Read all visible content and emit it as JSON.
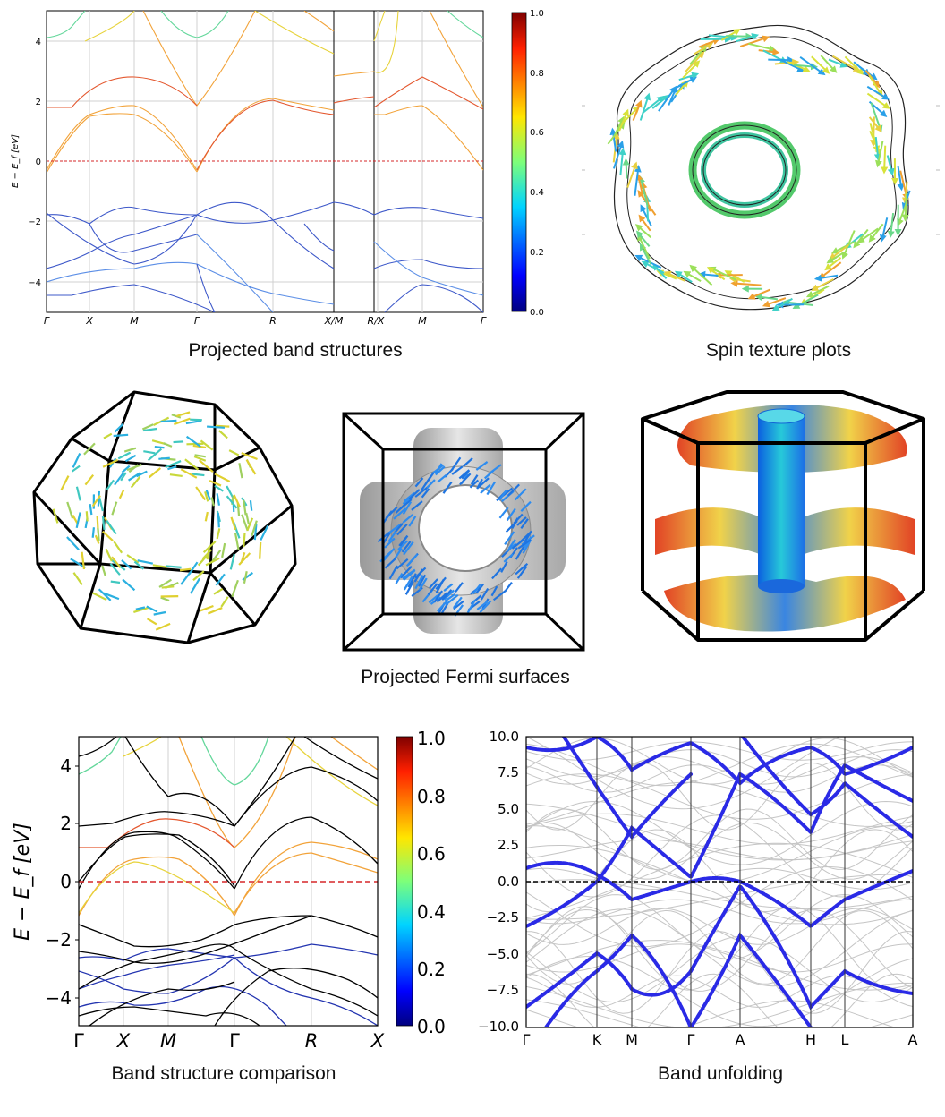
{
  "colors": {
    "band_red": "#e4572e",
    "band_orange": "#f2a33a",
    "band_yellow": "#e7d33c",
    "band_green": "#64d79b",
    "band_blue": "#3d58c9",
    "band_lightblue": "#5b8ee6",
    "fermi_dash": "#d62728",
    "unfold_blue": "#2a2ae6",
    "unfold_grey": "#c5c5c5"
  },
  "captions": {
    "projected_bands": "Projected band structures",
    "spin_texture": "Spin texture plots",
    "fermi_surfaces": "Projected Fermi surfaces",
    "band_comparison": "Band structure comparison",
    "band_unfolding": "Band unfolding"
  },
  "panel1": {
    "ylabel": "E − E_f [eV]",
    "yticks": [
      "4",
      "2",
      "0",
      "−2",
      "−4"
    ],
    "xticks": [
      "Γ",
      "X",
      "M",
      "Γ",
      "R",
      "X/M",
      "R/X",
      "M",
      "Γ"
    ],
    "colorbar_ticks": [
      "1.0",
      "0.8",
      "0.6",
      "0.4",
      "0.2",
      "0.0"
    ]
  },
  "panel_comparison": {
    "ylabel": "E − E_f [eV]",
    "yticks": [
      "4",
      "2",
      "0",
      "−2",
      "−4"
    ],
    "xticks": [
      "Γ",
      "X",
      "M",
      "Γ",
      "R",
      "X"
    ],
    "colorbar_ticks": [
      "1.0",
      "0.8",
      "0.6",
      "0.4",
      "0.2",
      "0.0"
    ]
  },
  "panel_unfolding": {
    "yticks": [
      "10.0",
      "7.5",
      "5.0",
      "2.5",
      "0.0",
      "−2.5",
      "−5.0",
      "−7.5",
      "−10.0"
    ],
    "xticks": [
      "Γ",
      "K",
      "M",
      "Γ",
      "A",
      "H",
      "L",
      "A"
    ]
  },
  "chart_data": [
    {
      "type": "line",
      "title": "Projected band structures",
      "ylabel": "E − E_f [eV]",
      "ylim": [
        -5,
        5
      ],
      "x_ticks": [
        "Γ",
        "X",
        "M",
        "Γ",
        "R",
        "X/M",
        "R/X",
        "M",
        "Γ"
      ],
      "colorbar_range": [
        0.0,
        1.0
      ],
      "fermi_level": 0
    },
    {
      "type": "line",
      "title": "Band structure comparison",
      "ylabel": "E − E_f [eV]",
      "ylim": [
        -5,
        5
      ],
      "x_ticks": [
        "Γ",
        "X",
        "M",
        "Γ",
        "R",
        "X"
      ],
      "colorbar_range": [
        0.0,
        1.0
      ],
      "fermi_level": 0
    },
    {
      "type": "line",
      "title": "Band unfolding",
      "ylim": [
        -10,
        10
      ],
      "x_ticks": [
        "Γ",
        "K",
        "M",
        "Γ",
        "A",
        "H",
        "L",
        "A"
      ],
      "fermi_level": 0
    }
  ]
}
